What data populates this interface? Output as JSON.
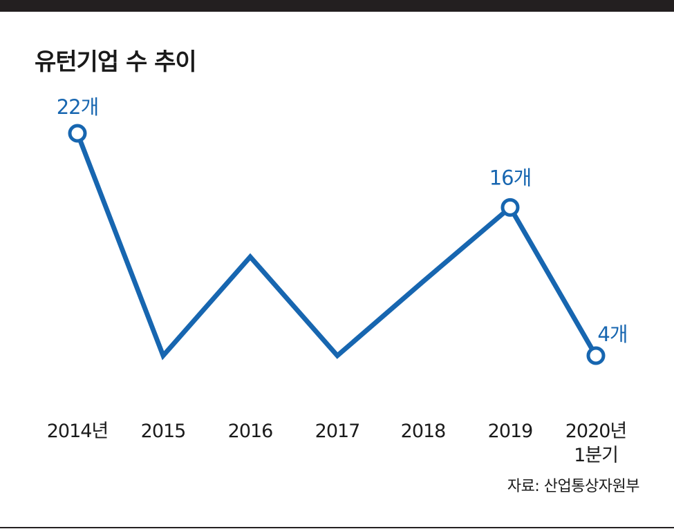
{
  "title": "유턴기업 수 추이",
  "source": "자료: 산업통상자원부",
  "colors": {
    "line": "#1766b0",
    "marker_fill": "#ffffff",
    "text": "#1a1a1a",
    "rule": "#231f20"
  },
  "chart_data": {
    "type": "line",
    "title": "유턴기업 수 추이",
    "categories": [
      "2014년",
      "2015",
      "2016",
      "2017",
      "2018",
      "2019",
      "2020년\n1분기"
    ],
    "series": [
      {
        "values": [
          22,
          4,
          12,
          4,
          10,
          16,
          4
        ]
      }
    ],
    "data_labels": [
      {
        "index": 0,
        "text": "22개"
      },
      {
        "index": 5,
        "text": "16개"
      },
      {
        "index": 6,
        "text": "4개"
      }
    ],
    "ylim": [
      4,
      22
    ],
    "grid": false,
    "legend": "none"
  }
}
